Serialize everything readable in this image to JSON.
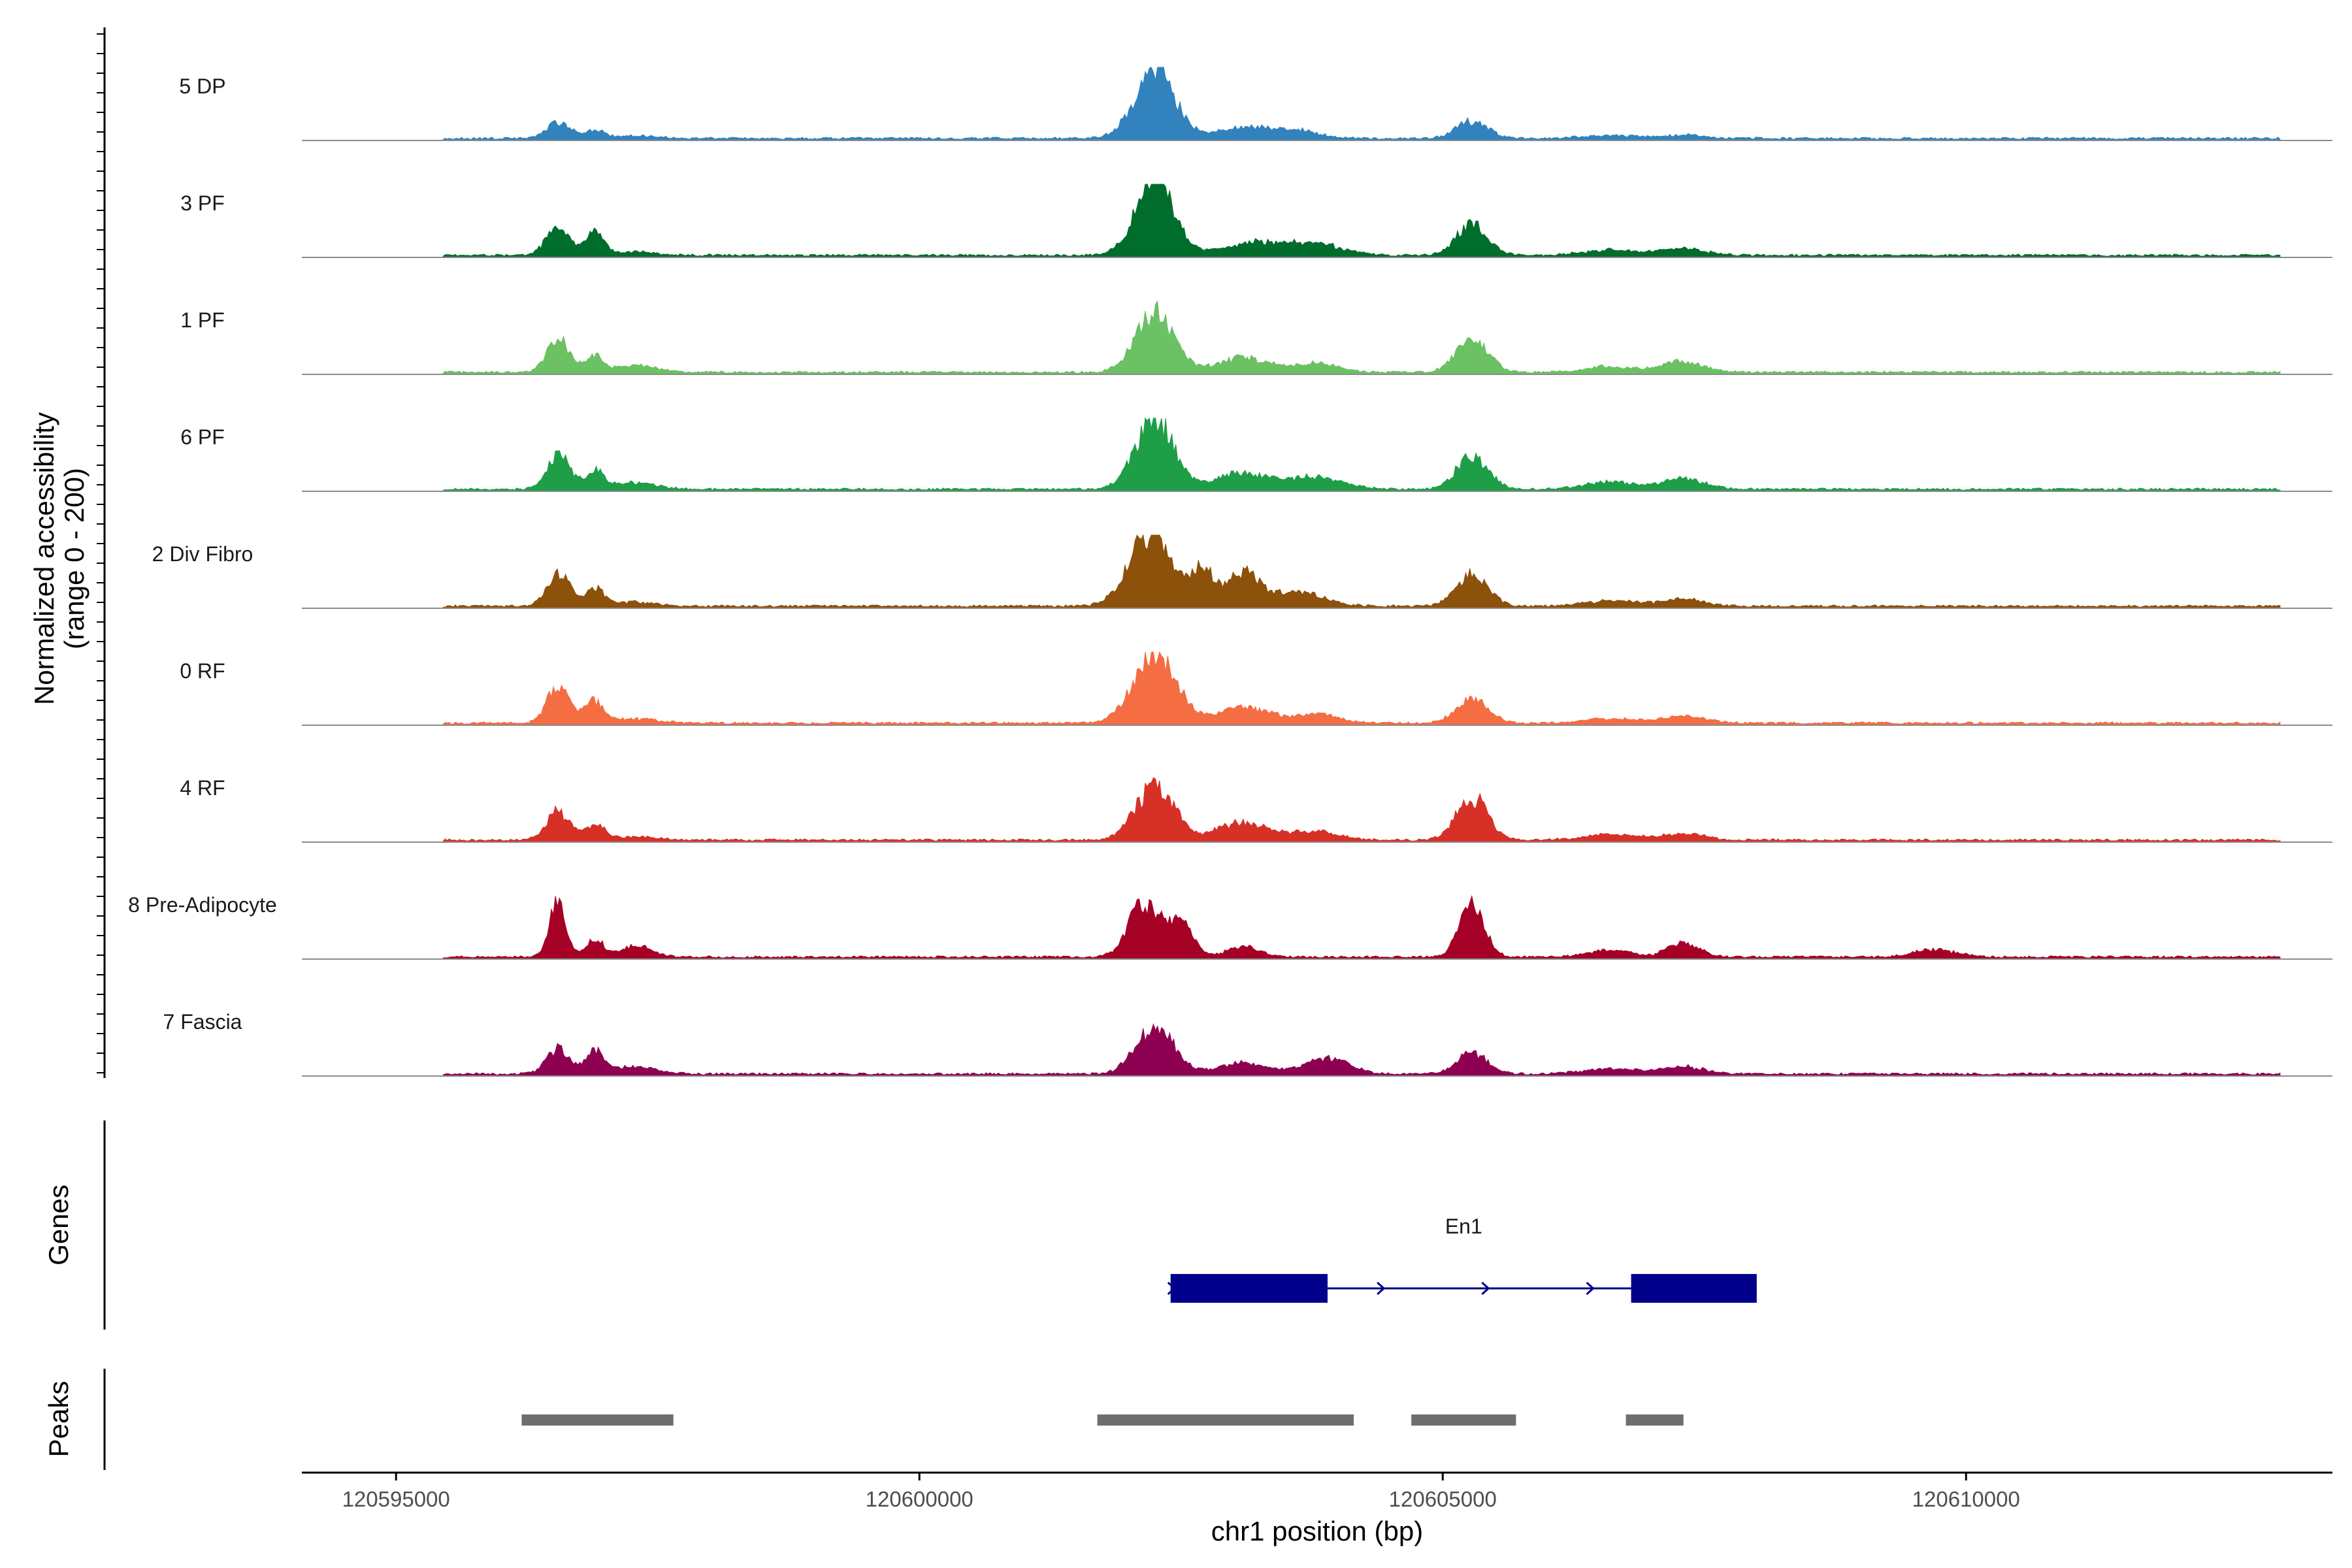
{
  "chart_data": {
    "type": "area",
    "title": "",
    "ylabel": "Normalized accessibility",
    "ylabel_range": "(range 0 - 200)",
    "xlabel": "chr1 position (bp)",
    "xlim": [
      120594100,
      120613500
    ],
    "ylim": [
      0,
      200
    ],
    "x_ticks": [
      "120595000",
      "120600000",
      "120605000",
      "120610000"
    ],
    "x_tick_values": [
      120595000,
      120600000,
      120605000,
      120610000
    ],
    "signal_start": 120595450,
    "signal_end": 120613000,
    "colors": {
      "5 DP": "#3182bd",
      "3 PF": "#006d2c",
      "1 PF": "#6bc164",
      "6 PF": "#1f9e48",
      "2 Div Fibro": "#8c510a",
      "0 RF": "#f46d43",
      "4 RF": "#d73027",
      "8 Pre-Adipocyte": "#a50026",
      "7 Fascia": "#8e0152"
    },
    "series": [
      {
        "name": "5 DP",
        "color": "#3182bd",
        "peaks": [
          [
            120596550,
            45,
            110
          ],
          [
            120596900,
            22,
            90
          ],
          [
            120597300,
            8,
            200
          ],
          [
            120602250,
            190,
            190
          ],
          [
            120603100,
            30,
            250
          ],
          [
            120603600,
            20,
            220
          ],
          [
            120605280,
            48,
            150
          ],
          [
            120606600,
            8,
            250
          ],
          [
            120607300,
            9,
            180
          ]
        ]
      },
      {
        "name": "3 PF",
        "color": "#006d2c",
        "peaks": [
          [
            120596550,
            80,
            110
          ],
          [
            120596900,
            62,
            90
          ],
          [
            120597300,
            10,
            200
          ],
          [
            120602250,
            210,
            180
          ],
          [
            120603200,
            35,
            300
          ],
          [
            120603800,
            30,
            250
          ],
          [
            120605280,
            85,
            150
          ],
          [
            120606600,
            15,
            250
          ],
          [
            120607300,
            20,
            200
          ]
        ]
      },
      {
        "name": "1 PF",
        "color": "#6bc164",
        "peaks": [
          [
            120596550,
            90,
            110
          ],
          [
            120596900,
            45,
            90
          ],
          [
            120597300,
            18,
            200
          ],
          [
            120602250,
            170,
            180
          ],
          [
            120603100,
            40,
            250
          ],
          [
            120603800,
            25,
            200
          ],
          [
            120605280,
            95,
            150
          ],
          [
            120606600,
            15,
            250
          ],
          [
            120607300,
            30,
            200
          ]
        ]
      },
      {
        "name": "6 PF",
        "color": "#1f9e48",
        "peaks": [
          [
            120596550,
            95,
            110
          ],
          [
            120596900,
            50,
            90
          ],
          [
            120597300,
            18,
            200
          ],
          [
            120602250,
            200,
            180
          ],
          [
            120603100,
            45,
            250
          ],
          [
            120603800,
            35,
            250
          ],
          [
            120605280,
            90,
            150
          ],
          [
            120606600,
            20,
            250
          ],
          [
            120607300,
            30,
            200
          ]
        ]
      },
      {
        "name": "2 Div Fibro",
        "color": "#8c510a",
        "peaks": [
          [
            120596550,
            90,
            110
          ],
          [
            120596900,
            50,
            90
          ],
          [
            120597300,
            12,
            200
          ],
          [
            120602200,
            200,
            200
          ],
          [
            120602700,
            100,
            120
          ],
          [
            120603100,
            90,
            150
          ],
          [
            120603600,
            40,
            250
          ],
          [
            120605280,
            90,
            150
          ],
          [
            120606600,
            15,
            250
          ],
          [
            120607300,
            20,
            200
          ]
        ]
      },
      {
        "name": "0 RF",
        "color": "#f46d43",
        "peaks": [
          [
            120596550,
            100,
            110
          ],
          [
            120596900,
            60,
            90
          ],
          [
            120597300,
            12,
            200
          ],
          [
            120602250,
            200,
            200
          ],
          [
            120603100,
            45,
            250
          ],
          [
            120603800,
            25,
            200
          ],
          [
            120605280,
            70,
            150
          ],
          [
            120606600,
            12,
            250
          ],
          [
            120607300,
            20,
            200
          ]
        ]
      },
      {
        "name": "4 RF",
        "color": "#d73027",
        "peaks": [
          [
            120596550,
            80,
            110
          ],
          [
            120596900,
            45,
            90
          ],
          [
            120597300,
            10,
            200
          ],
          [
            120602250,
            150,
            180
          ],
          [
            120603100,
            50,
            250
          ],
          [
            120603800,
            25,
            200
          ],
          [
            120605280,
            120,
            150
          ],
          [
            120606600,
            15,
            250
          ],
          [
            120607300,
            18,
            200
          ]
        ]
      },
      {
        "name": "8 Pre-Adipocyte",
        "color": "#a50026",
        "peaks": [
          [
            120596550,
            160,
            80
          ],
          [
            120596900,
            50,
            80
          ],
          [
            120597300,
            30,
            150
          ],
          [
            120602150,
            150,
            150
          ],
          [
            120602500,
            90,
            120
          ],
          [
            120603100,
            30,
            150
          ],
          [
            120605280,
            140,
            120
          ],
          [
            120606600,
            20,
            200
          ],
          [
            120607300,
            40,
            150
          ],
          [
            120609700,
            20,
            200
          ]
        ]
      },
      {
        "name": "7 Fascia",
        "color": "#8e0152",
        "peaks": [
          [
            120596550,
            70,
            110
          ],
          [
            120596900,
            60,
            90
          ],
          [
            120597300,
            20,
            200
          ],
          [
            120602250,
            130,
            180
          ],
          [
            120603100,
            30,
            250
          ],
          [
            120603900,
            45,
            200
          ],
          [
            120605280,
            55,
            150
          ],
          [
            120606600,
            15,
            250
          ],
          [
            120607300,
            20,
            200
          ]
        ]
      }
    ],
    "genes": [
      {
        "name": "En1",
        "strand": "+",
        "start": 120602400,
        "end": 120608000,
        "exons": [
          [
            120602400,
            120603900
          ],
          [
            120606800,
            120608000
          ]
        ]
      }
    ],
    "peaks": [
      [
        120596200,
        120597650
      ],
      [
        120601700,
        120604150
      ],
      [
        120604700,
        120605700
      ],
      [
        120606750,
        120607300
      ]
    ],
    "panel_labels": {
      "genes": "Genes",
      "peaks": "Peaks"
    }
  }
}
